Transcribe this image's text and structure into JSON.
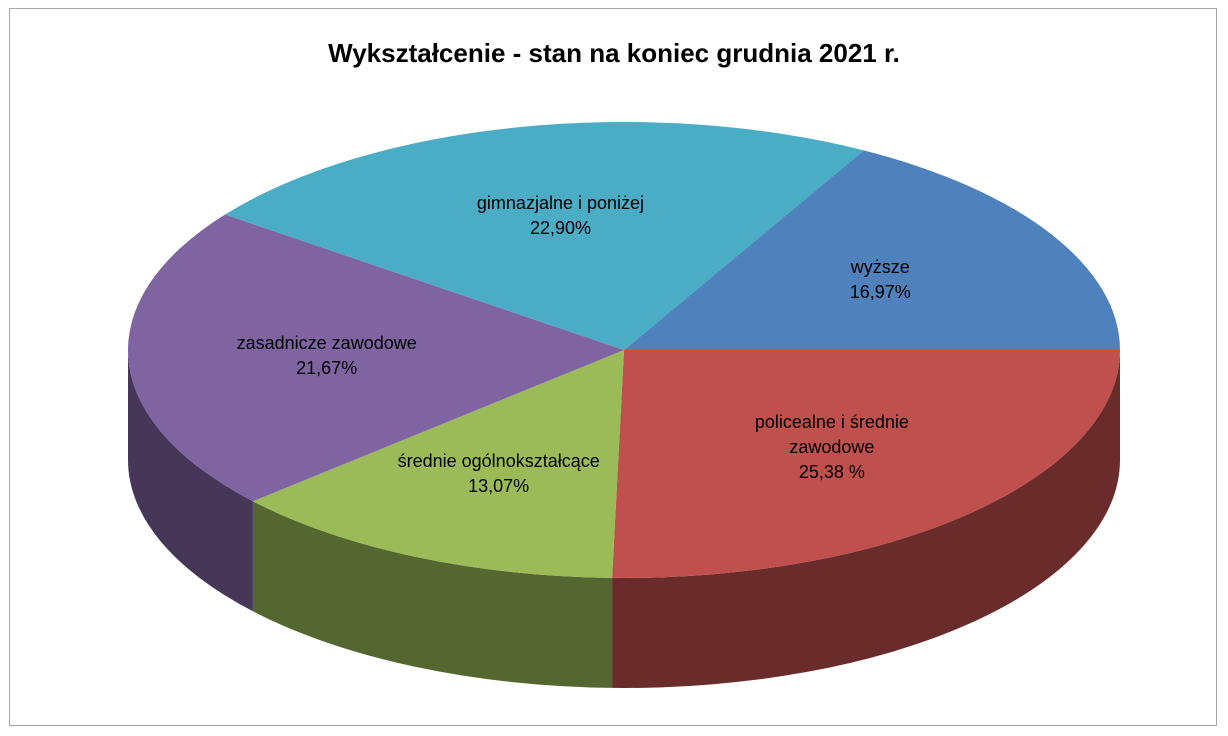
{
  "chart_data": {
    "type": "pie",
    "title": "Wykształcenie - stan na koniec grudnia 2021 r.",
    "categories": [
      "wyższe",
      "policealne i średnie zawodowe",
      "średnie ogólnokształcące",
      "zasadnicze zawodowe",
      "gimnazjalne i poniżej"
    ],
    "values": [
      16.97,
      25.38,
      13.07,
      21.67,
      22.9
    ],
    "value_labels": [
      "16,97%",
      "25,38 %",
      "13,07%",
      "21,67%",
      "22,90%"
    ],
    "colors": [
      "#4f81bd",
      "#c0504d",
      "#9bbb59",
      "#8064a2",
      "#4bacc6"
    ]
  }
}
